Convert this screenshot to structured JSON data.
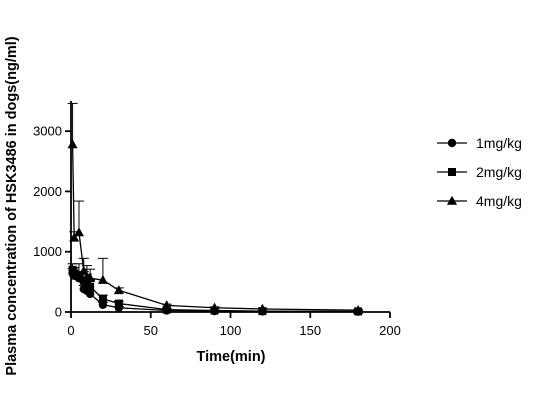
{
  "chart_data": {
    "type": "line",
    "title": "",
    "xlabel": "Time(min)",
    "ylabel": "Plasma concentration of HSK3486 in dogs(ng/ml)",
    "xlim": [
      0,
      200
    ],
    "ylim": [
      0,
      3500
    ],
    "x_ticks": [
      0,
      50,
      100,
      150,
      200
    ],
    "y_ticks": [
      0,
      1000,
      2000,
      3000
    ],
    "legend_position": "right",
    "grid": false,
    "error_bars": "upward",
    "series": [
      {
        "name": "1mg/kg",
        "marker": "circle",
        "x": [
          1,
          2,
          5,
          8,
          10,
          12,
          20,
          30,
          60,
          90,
          120,
          180
        ],
        "y": [
          640,
          600,
          560,
          380,
          350,
          300,
          120,
          70,
          25,
          15,
          10,
          5
        ],
        "err": [
          80,
          80,
          100,
          60,
          60,
          50,
          40,
          20,
          10,
          5,
          5,
          3
        ]
      },
      {
        "name": "2mg/kg",
        "marker": "square",
        "x": [
          1,
          2,
          5,
          8,
          10,
          12,
          20,
          30,
          60,
          90,
          120,
          180
        ],
        "y": [
          700,
          640,
          600,
          520,
          500,
          420,
          220,
          140,
          40,
          25,
          15,
          10
        ],
        "err": [
          100,
          100,
          200,
          150,
          130,
          110,
          60,
          40,
          15,
          10,
          5,
          5
        ]
      },
      {
        "name": "4mg/kg",
        "marker": "triangle",
        "x": [
          1,
          2,
          5,
          8,
          10,
          12,
          20,
          30,
          60,
          90,
          120,
          180
        ],
        "y": [
          2780,
          1230,
          1320,
          680,
          580,
          560,
          530,
          360,
          110,
          70,
          50,
          30
        ],
        "err": [
          680,
          100,
          520,
          210,
          190,
          150,
          360,
          40,
          20,
          15,
          10,
          8
        ]
      }
    ]
  }
}
